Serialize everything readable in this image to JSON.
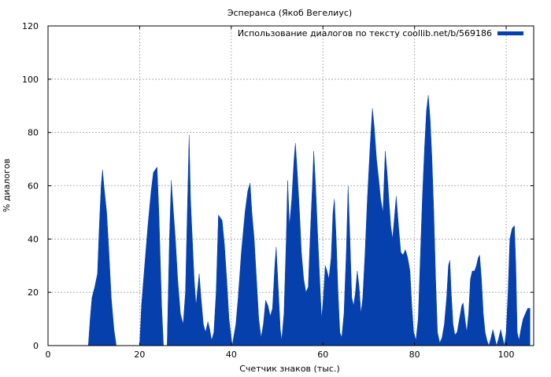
{
  "chart_data": {
    "type": "area",
    "title": "Эсперанса (Якоб Вегелиус)",
    "xlabel": "Счетчик знаков (тыс.)",
    "ylabel": "% диалогов",
    "xlim": [
      0,
      106
    ],
    "ylim": [
      0,
      120
    ],
    "x_ticks": [
      0,
      20,
      40,
      60,
      80,
      100
    ],
    "y_ticks": [
      0,
      20,
      40,
      60,
      80,
      100,
      120
    ],
    "grid": true,
    "legend_position": "top-right",
    "series": [
      {
        "name": "Использование диалогов по тексту coollib.net/b/569186",
        "color": "#0540ad",
        "points": [
          [
            0,
            0
          ],
          [
            8.8,
            0
          ],
          [
            9.2,
            10
          ],
          [
            9.6,
            18
          ],
          [
            10.2,
            22
          ],
          [
            10.8,
            27
          ],
          [
            11.2,
            45
          ],
          [
            11.6,
            60
          ],
          [
            11.9,
            66
          ],
          [
            12.2,
            60
          ],
          [
            12.8,
            50
          ],
          [
            13.3,
            35
          ],
          [
            13.8,
            18
          ],
          [
            14.4,
            6
          ],
          [
            14.9,
            0
          ],
          [
            20.0,
            0
          ],
          [
            20.4,
            15
          ],
          [
            21.0,
            28
          ],
          [
            21.8,
            45
          ],
          [
            22.5,
            58
          ],
          [
            23.0,
            65
          ],
          [
            23.8,
            67
          ],
          [
            24.2,
            50
          ],
          [
            24.8,
            15
          ],
          [
            25.2,
            0
          ],
          [
            26.0,
            0
          ],
          [
            26.5,
            40
          ],
          [
            26.9,
            62
          ],
          [
            27.3,
            52
          ],
          [
            27.8,
            40
          ],
          [
            28.3,
            25
          ],
          [
            28.9,
            12
          ],
          [
            29.5,
            8
          ],
          [
            30.0,
            20
          ],
          [
            30.4,
            50
          ],
          [
            30.8,
            79
          ],
          [
            31.1,
            55
          ],
          [
            31.5,
            40
          ],
          [
            31.9,
            25
          ],
          [
            32.3,
            15
          ],
          [
            32.7,
            22
          ],
          [
            33.0,
            27
          ],
          [
            33.4,
            18
          ],
          [
            33.9,
            8
          ],
          [
            34.4,
            5
          ],
          [
            34.9,
            9
          ],
          [
            35.3,
            6
          ],
          [
            35.7,
            2
          ],
          [
            36.2,
            5
          ],
          [
            36.7,
            20
          ],
          [
            37.2,
            49
          ],
          [
            38.0,
            47
          ],
          [
            38.5,
            38
          ],
          [
            39.0,
            25
          ],
          [
            39.5,
            10
          ],
          [
            40.2,
            0
          ],
          [
            41.0,
            8
          ],
          [
            41.5,
            18
          ],
          [
            42.2,
            35
          ],
          [
            43.0,
            50
          ],
          [
            43.6,
            58
          ],
          [
            44.1,
            61
          ],
          [
            44.5,
            50
          ],
          [
            45.0,
            40
          ],
          [
            45.5,
            25
          ],
          [
            46.0,
            10
          ],
          [
            46.5,
            3
          ],
          [
            47.0,
            8
          ],
          [
            47.5,
            17
          ],
          [
            48.0,
            15
          ],
          [
            48.5,
            11
          ],
          [
            49.0,
            14
          ],
          [
            49.5,
            30
          ],
          [
            49.8,
            37
          ],
          [
            50.3,
            20
          ],
          [
            50.7,
            6
          ],
          [
            51.0,
            2
          ],
          [
            51.5,
            12
          ],
          [
            52.0,
            40
          ],
          [
            52.3,
            62
          ],
          [
            52.7,
            45
          ],
          [
            53.2,
            55
          ],
          [
            53.7,
            70
          ],
          [
            54.0,
            76
          ],
          [
            54.4,
            65
          ],
          [
            54.9,
            50
          ],
          [
            55.3,
            35
          ],
          [
            55.8,
            25
          ],
          [
            56.3,
            20
          ],
          [
            56.8,
            22
          ],
          [
            57.2,
            40
          ],
          [
            57.7,
            60
          ],
          [
            58.0,
            73
          ],
          [
            58.4,
            60
          ],
          [
            58.9,
            40
          ],
          [
            59.3,
            25
          ],
          [
            59.7,
            10
          ],
          [
            60.1,
            18
          ],
          [
            60.5,
            30
          ],
          [
            60.9,
            28
          ],
          [
            61.3,
            25
          ],
          [
            61.8,
            33
          ],
          [
            62.2,
            50
          ],
          [
            62.5,
            55
          ],
          [
            62.9,
            40
          ],
          [
            63.3,
            20
          ],
          [
            63.7,
            5
          ],
          [
            64.1,
            3
          ],
          [
            64.6,
            12
          ],
          [
            65.1,
            35
          ],
          [
            65.5,
            60
          ],
          [
            65.9,
            40
          ],
          [
            66.3,
            18
          ],
          [
            66.7,
            15
          ],
          [
            67.1,
            20
          ],
          [
            67.5,
            28
          ],
          [
            67.9,
            22
          ],
          [
            68.3,
            12
          ],
          [
            68.7,
            18
          ],
          [
            69.2,
            35
          ],
          [
            69.7,
            55
          ],
          [
            70.3,
            75
          ],
          [
            70.8,
            89
          ],
          [
            71.2,
            82
          ],
          [
            71.7,
            70
          ],
          [
            72.2,
            62
          ],
          [
            72.6,
            55
          ],
          [
            73.1,
            50
          ],
          [
            73.6,
            73
          ],
          [
            74.0,
            65
          ],
          [
            74.4,
            55
          ],
          [
            74.8,
            45
          ],
          [
            75.2,
            40
          ],
          [
            75.6,
            48
          ],
          [
            76.0,
            56
          ],
          [
            76.5,
            45
          ],
          [
            77.0,
            35
          ],
          [
            77.5,
            34
          ],
          [
            78.0,
            36
          ],
          [
            78.5,
            33
          ],
          [
            79.0,
            28
          ],
          [
            79.4,
            15
          ],
          [
            79.8,
            5
          ],
          [
            80.3,
            2
          ],
          [
            80.8,
            10
          ],
          [
            81.2,
            30
          ],
          [
            81.7,
            55
          ],
          [
            82.2,
            75
          ],
          [
            82.6,
            88
          ],
          [
            83.0,
            94
          ],
          [
            83.4,
            85
          ],
          [
            83.8,
            70
          ],
          [
            84.2,
            50
          ],
          [
            84.6,
            25
          ],
          [
            85.0,
            5
          ],
          [
            85.5,
            1
          ],
          [
            86.0,
            3
          ],
          [
            86.5,
            8
          ],
          [
            87.0,
            18
          ],
          [
            87.4,
            30
          ],
          [
            87.7,
            32
          ],
          [
            88.0,
            20
          ],
          [
            88.4,
            8
          ],
          [
            88.8,
            4
          ],
          [
            89.3,
            5
          ],
          [
            89.8,
            10
          ],
          [
            90.3,
            15
          ],
          [
            90.6,
            16
          ],
          [
            91.0,
            10
          ],
          [
            91.4,
            5
          ],
          [
            91.8,
            12
          ],
          [
            92.2,
            25
          ],
          [
            92.6,
            28
          ],
          [
            93.1,
            28
          ],
          [
            93.5,
            30
          ],
          [
            93.9,
            33
          ],
          [
            94.2,
            34
          ],
          [
            94.6,
            25
          ],
          [
            95.0,
            12
          ],
          [
            95.4,
            5
          ],
          [
            95.8,
            2
          ],
          [
            96.2,
            0
          ],
          [
            96.7,
            3
          ],
          [
            97.1,
            6
          ],
          [
            97.5,
            3
          ],
          [
            97.9,
            0
          ],
          [
            98.4,
            3
          ],
          [
            98.8,
            6
          ],
          [
            99.2,
            3
          ],
          [
            99.6,
            0
          ],
          [
            100.0,
            5
          ],
          [
            100.4,
            20
          ],
          [
            100.8,
            40
          ],
          [
            101.3,
            44
          ],
          [
            101.8,
            45
          ],
          [
            102.1,
            30
          ],
          [
            102.4,
            5
          ],
          [
            102.8,
            2
          ],
          [
            103.2,
            6
          ],
          [
            103.7,
            10
          ],
          [
            104.2,
            12
          ],
          [
            104.7,
            14
          ],
          [
            105.2,
            14
          ]
        ]
      }
    ]
  }
}
